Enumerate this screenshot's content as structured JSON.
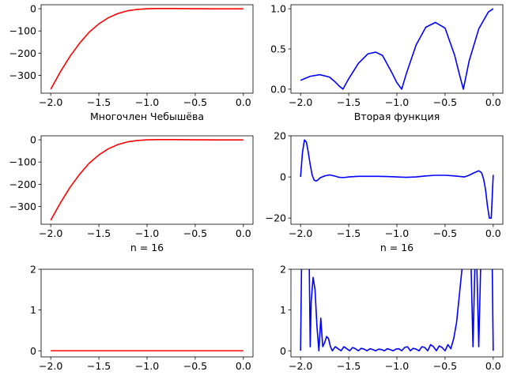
{
  "chart_data": [
    {
      "type": "line",
      "subplot": "top-left",
      "xlabel": "",
      "xlim": [
        -2.1,
        0.1
      ],
      "ylim": [
        -380,
        18
      ],
      "xticks": [
        -2.0,
        -1.5,
        -1.0,
        -0.5,
        0.0
      ],
      "xtick_labels": [
        "−2.0",
        "−1.5",
        "−1.0",
        "−0.5",
        "0.0"
      ],
      "yticks": [
        0,
        -100,
        -200,
        -300
      ],
      "ytick_labels": [
        "0",
        "−100",
        "−200",
        "−300"
      ],
      "series": [
        {
          "color": "#ff0000",
          "x": [
            -2.0,
            -1.9,
            -1.8,
            -1.7,
            -1.6,
            -1.5,
            -1.4,
            -1.3,
            -1.2,
            -1.1,
            -1.0,
            -0.9,
            -0.8,
            -0.7,
            -0.6,
            -0.5,
            -0.4,
            -0.3,
            -0.2,
            -0.1,
            0.0
          ],
          "y": [
            -362,
            -284,
            -214,
            -155,
            -105,
            -68,
            -40,
            -21,
            -9,
            -3,
            0,
            1,
            1,
            1,
            0.5,
            0,
            0,
            -0.5,
            -0.5,
            -0.5,
            -0.5
          ]
        }
      ]
    },
    {
      "type": "line",
      "subplot": "top-right",
      "xlabel": "",
      "xlim": [
        -2.1,
        0.1
      ],
      "ylim": [
        -0.05,
        1.05
      ],
      "xticks": [
        -2.0,
        -1.5,
        -1.0,
        -0.5,
        0.0
      ],
      "xtick_labels": [
        "−2.0",
        "−1.5",
        "−1.0",
        "−0.5",
        "0.0"
      ],
      "yticks": [
        0.0,
        0.5,
        1.0
      ],
      "ytick_labels": [
        "0.0",
        "0.5",
        "1.0"
      ],
      "series": [
        {
          "color": "#0000ff",
          "x": [
            -2.0,
            -1.9,
            -1.8,
            -1.7,
            -1.65,
            -1.6,
            -1.56,
            -1.5,
            -1.4,
            -1.3,
            -1.22,
            -1.15,
            -1.05,
            -1.0,
            -0.95,
            -0.9,
            -0.8,
            -0.7,
            -0.6,
            -0.5,
            -0.4,
            -0.35,
            -0.31,
            -0.25,
            -0.15,
            -0.05,
            0.0
          ],
          "y": [
            0.11,
            0.16,
            0.18,
            0.15,
            0.1,
            0.04,
            0.0,
            0.13,
            0.32,
            0.44,
            0.46,
            0.42,
            0.2,
            0.08,
            0.0,
            0.2,
            0.55,
            0.77,
            0.83,
            0.76,
            0.42,
            0.18,
            0.0,
            0.35,
            0.75,
            0.96,
            1.0
          ]
        }
      ]
    },
    {
      "type": "line",
      "subplot": "middle-left",
      "xlabel": "Многочлен Чебышёва",
      "xlim": [
        -2.1,
        0.1
      ],
      "ylim": [
        -380,
        18
      ],
      "xticks": [
        -2.0,
        -1.5,
        -1.0,
        -0.5,
        0.0
      ],
      "xtick_labels": [
        "−2.0",
        "−1.5",
        "−1.0",
        "−0.5",
        "0.0"
      ],
      "yticks": [
        0,
        -100,
        -200,
        -300
      ],
      "ytick_labels": [
        "0",
        "−100",
        "−200",
        "−300"
      ],
      "series": [
        {
          "color": "#ff0000",
          "x": [
            -2.0,
            -1.9,
            -1.8,
            -1.7,
            -1.6,
            -1.5,
            -1.4,
            -1.3,
            -1.2,
            -1.1,
            -1.0,
            -0.9,
            -0.8,
            -0.7,
            -0.6,
            -0.5,
            -0.4,
            -0.3,
            -0.2,
            -0.1,
            0.0
          ],
          "y": [
            -362,
            -284,
            -214,
            -155,
            -105,
            -68,
            -40,
            -21,
            -9,
            -3,
            0,
            1,
            1,
            1,
            0.5,
            0,
            0,
            -0.5,
            -0.5,
            -0.5,
            -0.5
          ]
        }
      ]
    },
    {
      "type": "line",
      "subplot": "middle-right",
      "xlabel": "Вторая функция",
      "xlim": [
        -2.1,
        0.1
      ],
      "ylim": [
        -23,
        20
      ],
      "xticks": [
        -2.0,
        -1.5,
        -1.0,
        -0.5,
        0.0
      ],
      "xtick_labels": [
        "−2.0",
        "−1.5",
        "−1.0",
        "−0.5",
        "0.0"
      ],
      "yticks": [
        20,
        0,
        -20
      ],
      "ytick_labels": [
        "20",
        "0",
        "−20"
      ],
      "series": [
        {
          "color": "#0000ff",
          "x": [
            -2.0,
            -1.98,
            -1.96,
            -1.94,
            -1.92,
            -1.9,
            -1.88,
            -1.86,
            -1.84,
            -1.82,
            -1.8,
            -1.75,
            -1.7,
            -1.65,
            -1.6,
            -1.55,
            -1.5,
            -1.4,
            -1.3,
            -1.2,
            -1.1,
            -1.0,
            -0.9,
            -0.8,
            -0.7,
            -0.6,
            -0.5,
            -0.4,
            -0.3,
            -0.25,
            -0.2,
            -0.15,
            -0.12,
            -0.1,
            -0.08,
            -0.06,
            -0.04,
            -0.02,
            0.0
          ],
          "y": [
            0,
            12,
            18,
            17,
            12,
            6,
            1,
            -1.5,
            -2,
            -1.5,
            -0.5,
            0.5,
            1,
            0.5,
            -0.2,
            -0.3,
            0,
            0.3,
            0.3,
            0.3,
            0.2,
            0,
            -0.2,
            0,
            0.5,
            0.8,
            0.8,
            0.5,
            0,
            0.8,
            2,
            3,
            2,
            -1,
            -6,
            -14,
            -20,
            -20,
            1
          ]
        }
      ]
    },
    {
      "type": "line",
      "subplot": "bottom-left",
      "xlabel": "n = 16",
      "xlim": [
        -2.1,
        0.1
      ],
      "ylim": [
        -0.15,
        2.0
      ],
      "xticks": [
        -2.0,
        -1.5,
        -1.0,
        -0.5,
        0.0
      ],
      "xtick_labels": [
        "−2.0",
        "−1.5",
        "−1.0",
        "−0.5",
        "0.0"
      ],
      "yticks": [
        0,
        1,
        2
      ],
      "ytick_labels": [
        "0",
        "1",
        "2"
      ],
      "series": [
        {
          "color": "#ff0000",
          "x": [
            -2.0,
            0.0
          ],
          "y": [
            0,
            0
          ]
        }
      ]
    },
    {
      "type": "line",
      "subplot": "bottom-right",
      "xlabel": "n = 16",
      "xlim": [
        -2.1,
        0.1
      ],
      "ylim": [
        -0.15,
        2.0
      ],
      "xticks": [
        -2.0,
        -1.5,
        -1.0,
        -0.5,
        0.0
      ],
      "xtick_labels": [
        "−2.0",
        "−1.5",
        "−1.0",
        "−0.5",
        "0.0"
      ],
      "yticks": [
        0,
        1,
        2
      ],
      "ytick_labels": [
        "0",
        "1",
        "2"
      ],
      "series": [
        {
          "color": "#0000ff",
          "x": [
            -2.0,
            -1.99,
            -1.98,
            -1.96,
            -1.93,
            -1.91,
            -1.9,
            -1.89,
            -1.87,
            -1.85,
            -1.83,
            -1.81,
            -1.79,
            -1.77,
            -1.75,
            -1.73,
            -1.71,
            -1.69,
            -1.67,
            -1.64,
            -1.61,
            -1.58,
            -1.55,
            -1.52,
            -1.49,
            -1.46,
            -1.43,
            -1.4,
            -1.37,
            -1.34,
            -1.31,
            -1.28,
            -1.25,
            -1.22,
            -1.19,
            -1.16,
            -1.13,
            -1.1,
            -1.07,
            -1.04,
            -1.01,
            -0.98,
            -0.95,
            -0.92,
            -0.89,
            -0.86,
            -0.83,
            -0.8,
            -0.77,
            -0.74,
            -0.71,
            -0.68,
            -0.65,
            -0.62,
            -0.59,
            -0.56,
            -0.53,
            -0.5,
            -0.47,
            -0.44,
            -0.41,
            -0.38,
            -0.35,
            -0.32,
            -0.29,
            -0.27,
            -0.25,
            -0.23,
            -0.21,
            -0.19,
            -0.17,
            -0.15,
            -0.13,
            -0.11,
            -0.09,
            -0.07,
            -0.05,
            -0.03,
            -0.01,
            0.0
          ],
          "y": [
            0,
            2.1,
            2.1,
            2.1,
            2.1,
            2.1,
            0.1,
            1.2,
            1.8,
            1.5,
            0.6,
            0.0,
            0.8,
            0.1,
            0.2,
            0.35,
            0.3,
            0.1,
            0.0,
            0.1,
            0.05,
            0.0,
            0.1,
            0.05,
            0.0,
            0.08,
            0.05,
            0.0,
            0.06,
            0.04,
            0.0,
            0.05,
            0.03,
            0.0,
            0.04,
            0.03,
            0.0,
            0.05,
            0.03,
            0.0,
            0.04,
            0.05,
            0.0,
            0.08,
            0.1,
            0.0,
            0.06,
            0.04,
            0.0,
            0.1,
            0.08,
            0.0,
            0.15,
            0.1,
            0.0,
            0.12,
            0.08,
            0.0,
            0.15,
            0.05,
            0.3,
            0.7,
            1.4,
            2.1,
            2.1,
            2.1,
            2.1,
            2.1,
            0.1,
            2.1,
            2.1,
            0.1,
            2.1,
            2.1,
            2.1,
            2.1,
            2.1,
            2.1,
            2.1,
            0.0
          ]
        }
      ]
    }
  ]
}
